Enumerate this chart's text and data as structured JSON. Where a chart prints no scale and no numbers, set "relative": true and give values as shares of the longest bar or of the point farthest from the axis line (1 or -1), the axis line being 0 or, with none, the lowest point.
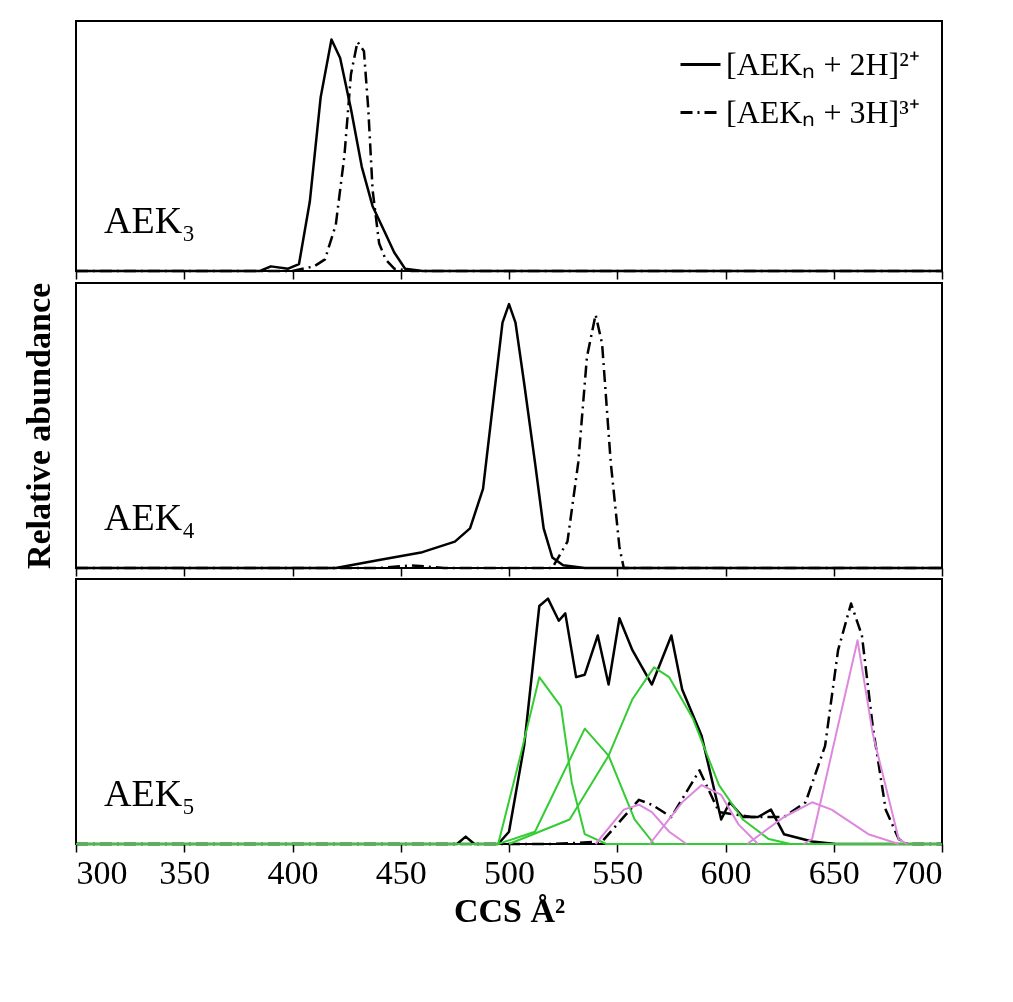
{
  "chart_data": [
    {
      "type": "line",
      "relative": true,
      "xlim": [
        300,
        700
      ],
      "xticks": [
        300,
        350,
        400,
        450,
        500,
        550,
        600,
        650,
        700
      ],
      "tick_labels": false,
      "legend": "top right",
      "annotations": [
        "AEK₃"
      ],
      "series": [
        {
          "name": "[AEKₙ + 2H]²⁺",
          "color": "#000000",
          "line_style": "solid",
          "x": [
            300,
            385,
            390,
            398,
            403,
            408,
            413,
            418,
            422,
            427,
            432,
            437,
            442,
            447,
            452,
            460,
            700
          ],
          "values": [
            0,
            0,
            0.02,
            0.01,
            0.03,
            0.3,
            0.75,
            1,
            0.92,
            0.7,
            0.45,
            0.28,
            0.18,
            0.08,
            0.01,
            0,
            0
          ]
        },
        {
          "name": "[AEKₙ + 3H]³⁺",
          "color": "#000000",
          "line_style": "dashed",
          "x": [
            300,
            400,
            410,
            415,
            420,
            424,
            427,
            430,
            433,
            435,
            437,
            440,
            443,
            447,
            455,
            700
          ],
          "values": [
            0,
            0,
            0.02,
            0.05,
            0.2,
            0.5,
            0.85,
            0.99,
            0.95,
            0.7,
            0.35,
            0.12,
            0.05,
            0.01,
            0,
            0
          ]
        }
      ]
    },
    {
      "type": "line",
      "relative": true,
      "xlim": [
        300,
        700
      ],
      "xticks": [
        300,
        350,
        400,
        450,
        500,
        550,
        600,
        650,
        700
      ],
      "tick_labels": false,
      "ylabel": "Relative abundance",
      "annotations": [
        "AEK₄"
      ],
      "series": [
        {
          "color": "#000000",
          "line_style": "solid",
          "x": [
            300,
            420,
            440,
            460,
            475,
            482,
            488,
            493,
            497,
            500,
            503,
            507,
            512,
            516,
            520,
            525,
            535,
            700
          ],
          "values": [
            0,
            0,
            0.03,
            0.06,
            0.1,
            0.15,
            0.3,
            0.65,
            0.93,
            1,
            0.93,
            0.7,
            0.4,
            0.15,
            0.04,
            0.01,
            0,
            0
          ]
        },
        {
          "color": "#000000",
          "line_style": "dashed",
          "x": [
            300,
            440,
            455,
            470,
            520,
            527,
            532,
            536,
            540,
            543,
            547,
            551,
            553,
            700
          ],
          "values": [
            0,
            0,
            0.01,
            0,
            0,
            0.1,
            0.4,
            0.8,
            0.96,
            0.85,
            0.4,
            0.08,
            0,
            0
          ]
        }
      ]
    },
    {
      "type": "line",
      "relative": true,
      "xlim": [
        300,
        700
      ],
      "xticks": [
        300,
        350,
        400,
        450,
        500,
        550,
        600,
        650,
        700
      ],
      "tick_labels": "x",
      "xlabel": "CCS Å²",
      "annotations": [
        "AEK₅"
      ],
      "series": [
        {
          "color": "#000000",
          "line_style": "solid",
          "x": [
            300,
            476,
            480,
            484,
            495,
            500,
            507,
            514,
            518,
            523,
            526,
            531,
            535,
            541,
            546,
            551,
            557,
            566,
            575,
            580,
            589,
            598,
            602,
            608,
            615,
            621,
            627,
            640,
            651,
            700
          ],
          "values": [
            0,
            0,
            0.03,
            0,
            0,
            0.05,
            0.4,
            0.97,
            1,
            0.91,
            0.94,
            0.68,
            0.69,
            0.85,
            0.65,
            0.92,
            0.79,
            0.65,
            0.85,
            0.63,
            0.44,
            0.1,
            0.17,
            0.11,
            0.11,
            0.14,
            0.04,
            0.01,
            0,
            0
          ]
        },
        {
          "color": "#000000",
          "line_style": "dashed",
          "x": [
            300,
            520,
            543,
            560,
            566,
            575,
            588,
            597,
            612,
            627,
            637,
            646,
            652,
            658,
            663,
            668,
            674,
            680,
            684,
            700
          ],
          "values": [
            0,
            0,
            0.01,
            0.18,
            0.16,
            0.11,
            0.3,
            0.13,
            0.11,
            0.11,
            0.17,
            0.4,
            0.79,
            0.98,
            0.85,
            0.48,
            0.14,
            0.02,
            0,
            0
          ]
        },
        {
          "color": "#33cc33",
          "x": [
            300,
            495,
            505,
            514,
            524,
            529,
            535,
            545,
            700
          ],
          "values": [
            0,
            0,
            0.35,
            0.68,
            0.56,
            0.25,
            0.04,
            0,
            0
          ]
        },
        {
          "color": "#33cc33",
          "x": [
            495,
            512,
            535,
            546,
            558,
            567
          ],
          "values": [
            0,
            0.05,
            0.47,
            0.36,
            0.1,
            0
          ]
        },
        {
          "color": "#33cc33",
          "x": [
            500,
            528,
            546,
            557,
            567,
            574,
            585,
            597,
            608,
            620,
            630
          ],
          "values": [
            0,
            0.1,
            0.36,
            0.59,
            0.72,
            0.68,
            0.51,
            0.24,
            0.1,
            0.02,
            0
          ]
        },
        {
          "color": "#dd88dd",
          "x": [
            540,
            553,
            560,
            566,
            574,
            582
          ],
          "values": [
            0,
            0.14,
            0.16,
            0.13,
            0.05,
            0
          ]
        },
        {
          "color": "#dd88dd",
          "x": [
            565,
            580,
            589,
            598,
            606,
            615
          ],
          "values": [
            0,
            0.17,
            0.24,
            0.2,
            0.08,
            0
          ]
        },
        {
          "color": "#dd88dd",
          "x": [
            610,
            627,
            640,
            649,
            666,
            680
          ],
          "values": [
            0,
            0.11,
            0.17,
            0.14,
            0.04,
            0
          ]
        },
        {
          "color": "#dd88dd",
          "x": [
            636,
            640,
            661,
            668,
            680,
            684
          ],
          "values": [
            0,
            0.02,
            0.83,
            0.45,
            0.02,
            0
          ]
        }
      ]
    }
  ]
}
